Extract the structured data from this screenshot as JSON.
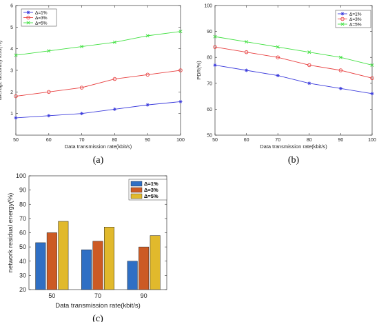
{
  "chart_data": [
    {
      "type": "line",
      "caption": "(a)",
      "xlabel": "Data transmission rate(kbit/s)",
      "ylabel": "average accuracy loss(%)",
      "x": [
        50,
        60,
        70,
        80,
        90,
        100
      ],
      "xlim": [
        50,
        100
      ],
      "ylim": [
        0,
        6
      ],
      "yticks": [
        1,
        2,
        3,
        4,
        5,
        6
      ],
      "legend_position": "top-left",
      "series": [
        {
          "name": "Δ=1%",
          "color": "#3b3bdc",
          "marker": "*",
          "values": [
            0.8,
            0.9,
            1.0,
            1.2,
            1.4,
            1.55
          ]
        },
        {
          "name": "Δ=3%",
          "color": "#e84040",
          "marker": "o",
          "values": [
            1.8,
            2.0,
            2.2,
            2.6,
            2.8,
            3.0
          ]
        },
        {
          "name": "Δ=5%",
          "color": "#40e040",
          "marker": "x",
          "values": [
            3.7,
            3.9,
            4.1,
            4.3,
            4.6,
            4.8
          ]
        }
      ]
    },
    {
      "type": "line",
      "caption": "(b)",
      "xlabel": "Data transmission rate(kbit/s)",
      "ylabel": "PDR(%)",
      "x": [
        50,
        60,
        70,
        80,
        90,
        100
      ],
      "xlim": [
        50,
        100
      ],
      "ylim": [
        50,
        100
      ],
      "yticks": [
        50,
        60,
        70,
        80,
        90,
        100
      ],
      "legend_position": "top-right",
      "series": [
        {
          "name": "Δ=1%",
          "color": "#3b3bdc",
          "marker": "*",
          "values": [
            77,
            75,
            73,
            70,
            68,
            66
          ]
        },
        {
          "name": "Δ=3%",
          "color": "#e84040",
          "marker": "o",
          "values": [
            84,
            82,
            80,
            77,
            75,
            72
          ]
        },
        {
          "name": "Δ=5%",
          "color": "#40e040",
          "marker": "x",
          "values": [
            88,
            86,
            84,
            82,
            80,
            77
          ]
        }
      ]
    },
    {
      "type": "bar",
      "caption": "(c)",
      "xlabel": "Data transmission rate(kbit/s)",
      "ylabel": "network residual energy(%)",
      "categories": [
        "50",
        "70",
        "90"
      ],
      "ylim": [
        20,
        100
      ],
      "yticks": [
        20,
        30,
        40,
        50,
        60,
        70,
        80,
        90,
        100
      ],
      "legend_position": "top-right",
      "series": [
        {
          "name": "Δ=1%",
          "color": "#2f6fc4",
          "values": [
            53,
            48,
            40
          ]
        },
        {
          "name": "Δ=3%",
          "color": "#cc5a24",
          "values": [
            60,
            54,
            50
          ]
        },
        {
          "name": "Δ=5%",
          "color": "#e1b92c",
          "values": [
            68,
            64,
            58
          ]
        }
      ]
    }
  ]
}
